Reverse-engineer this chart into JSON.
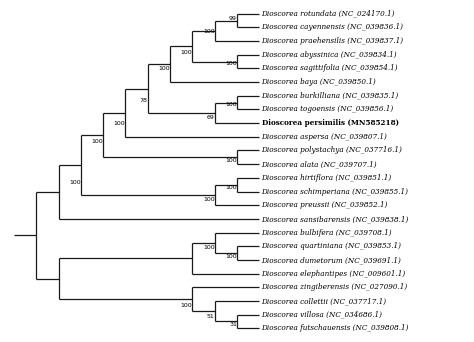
{
  "taxa": [
    {
      "name": "Dioscorea rotundata (NC_024170.1)",
      "bold": false,
      "y": 24
    },
    {
      "name": "Dioscorea cayennensis (NC_039836.1)",
      "bold": false,
      "y": 23
    },
    {
      "name": "Dioscorea praehensilis (NC_039837.1)",
      "bold": false,
      "y": 22
    },
    {
      "name": "Dioscorea abyssinica (NC_039834.1)",
      "bold": false,
      "y": 21
    },
    {
      "name": "Dioscorea sagittifolia (NC_039854.1)",
      "bold": false,
      "y": 20
    },
    {
      "name": "Dioscorea baya (NC_039850.1)",
      "bold": false,
      "y": 19
    },
    {
      "name": "Dioscorea burkilliana (NC_039835.1)",
      "bold": false,
      "y": 18
    },
    {
      "name": "Dioscorea togoensis (NC_039856.1)",
      "bold": false,
      "y": 17
    },
    {
      "name": "Dioscorea persimilis (MN585218)",
      "bold": true,
      "y": 16
    },
    {
      "name": "Dioscorea aspersa (NC_039807.1)",
      "bold": false,
      "y": 15
    },
    {
      "name": "Dioscorea polystachya (NC_037716.1)",
      "bold": false,
      "y": 14
    },
    {
      "name": "Dioscorea alata (NC_039707.1)",
      "bold": false,
      "y": 13
    },
    {
      "name": "Dioscorea hirtiflora (NC_039851.1)",
      "bold": false,
      "y": 12
    },
    {
      "name": "Dioscorea schimperiana (NC_039855.1)",
      "bold": false,
      "y": 11
    },
    {
      "name": "Dioscorea preussii (NC_039852.1)",
      "bold": false,
      "y": 10
    },
    {
      "name": "Dioscorea sansibarensis (NC_039838.1)",
      "bold": false,
      "y": 9
    },
    {
      "name": "Dioscorea bulbifera (NC_039708.1)",
      "bold": false,
      "y": 8
    },
    {
      "name": "Dioscorea quartiniana (NC_039853.1)",
      "bold": false,
      "y": 7
    },
    {
      "name": "Dioscorea dumetorum (NC_039691.1)",
      "bold": false,
      "y": 6
    },
    {
      "name": "Dioscorea elephantipes (NC_009601.1)",
      "bold": false,
      "y": 5
    },
    {
      "name": "Dioscorea zingiberensis (NC_027090.1)",
      "bold": false,
      "y": 4
    },
    {
      "name": "Dioscorea collettii (NC_037717.1)",
      "bold": false,
      "y": 3
    },
    {
      "name": "Dioscorea villosa (NC_034686.1)",
      "bold": false,
      "y": 2
    },
    {
      "name": "Dioscorea futschauensis (NC_039808.1)",
      "bold": false,
      "y": 1
    }
  ],
  "line_color": "#1a1a1a",
  "bg_color": "#ffffff",
  "font_size": 5.2,
  "label_font_size": 4.5
}
